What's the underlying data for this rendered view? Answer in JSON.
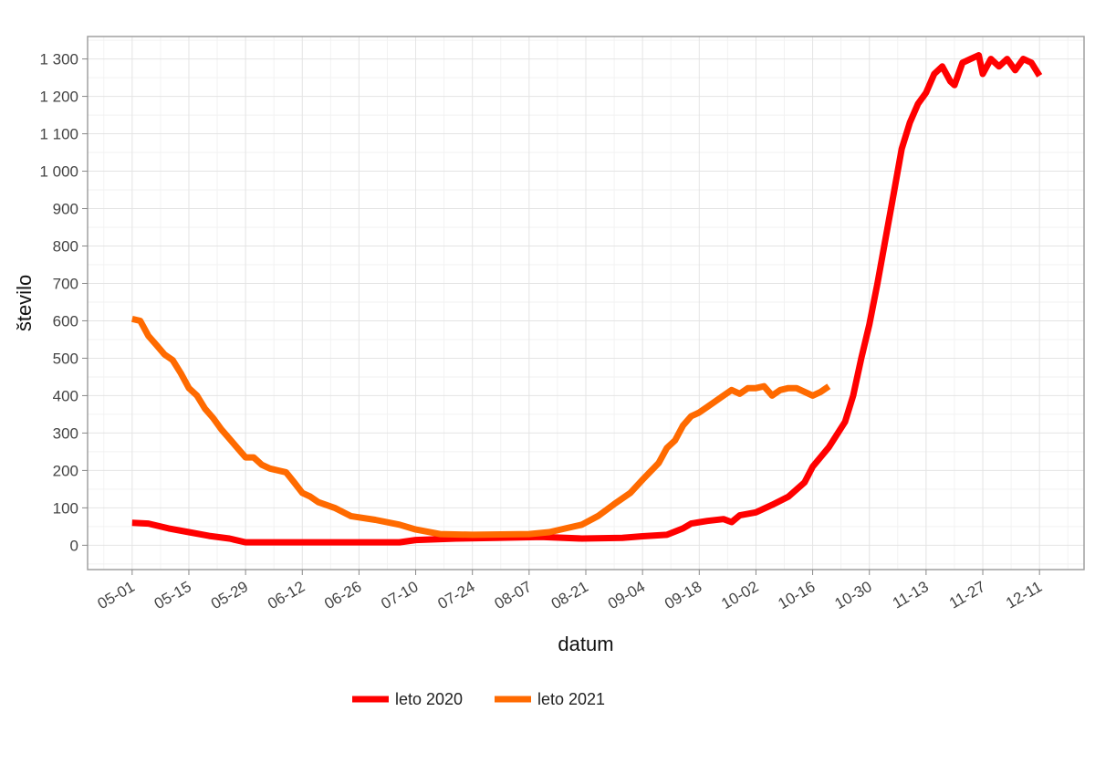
{
  "chart_data": {
    "type": "line",
    "xlabel": "datum",
    "ylabel": "število",
    "x_tick_labels": [
      "05-01",
      "05-15",
      "05-29",
      "06-12",
      "06-26",
      "07-10",
      "07-24",
      "08-07",
      "08-21",
      "09-04",
      "09-18",
      "10-02",
      "10-16",
      "10-30",
      "11-13",
      "11-27",
      "12-11"
    ],
    "y_tick_labels": [
      "0",
      "100",
      "200",
      "300",
      "400",
      "500",
      "600",
      "700",
      "800",
      "900",
      "1 000",
      "1 100",
      "1 200",
      "1 300"
    ],
    "y_ticks": [
      0,
      100,
      200,
      300,
      400,
      500,
      600,
      700,
      800,
      900,
      1000,
      1100,
      1200,
      1300
    ],
    "ylim": [
      -65,
      1360
    ],
    "x_axis": {
      "start": "05-01",
      "end": "12-11",
      "tick_step_days": 14,
      "overhang_days_left": 11,
      "overhang_days_right": 11
    },
    "grid": true,
    "legend_position": "bottom",
    "series": [
      {
        "name": "leto 2020",
        "color": "#ff0000",
        "points": [
          [
            "05-01",
            60
          ],
          [
            "05-05",
            58
          ],
          [
            "05-10",
            45
          ],
          [
            "05-15",
            35
          ],
          [
            "05-20",
            25
          ],
          [
            "05-25",
            18
          ],
          [
            "05-29",
            8
          ],
          [
            "06-10",
            8
          ],
          [
            "07-01",
            8
          ],
          [
            "07-06",
            8
          ],
          [
            "07-10",
            14
          ],
          [
            "07-20",
            18
          ],
          [
            "07-30",
            20
          ],
          [
            "08-10",
            22
          ],
          [
            "08-20",
            18
          ],
          [
            "08-30",
            20
          ],
          [
            "09-04",
            24
          ],
          [
            "09-10",
            28
          ],
          [
            "09-14",
            45
          ],
          [
            "09-16",
            58
          ],
          [
            "09-20",
            65
          ],
          [
            "09-24",
            70
          ],
          [
            "09-26",
            62
          ],
          [
            "09-28",
            80
          ],
          [
            "10-02",
            88
          ],
          [
            "10-06",
            108
          ],
          [
            "10-10",
            130
          ],
          [
            "10-14",
            168
          ],
          [
            "10-16",
            210
          ],
          [
            "10-20",
            262
          ],
          [
            "10-24",
            330
          ],
          [
            "10-26",
            400
          ],
          [
            "10-28",
            500
          ],
          [
            "10-30",
            590
          ],
          [
            "11-01",
            700
          ],
          [
            "11-03",
            820
          ],
          [
            "11-05",
            940
          ],
          [
            "11-07",
            1060
          ],
          [
            "11-09",
            1130
          ],
          [
            "11-11",
            1180
          ],
          [
            "11-13",
            1210
          ],
          [
            "11-15",
            1260
          ],
          [
            "11-17",
            1280
          ],
          [
            "11-19",
            1240
          ],
          [
            "11-20",
            1230
          ],
          [
            "11-22",
            1290
          ],
          [
            "11-24",
            1300
          ],
          [
            "11-26",
            1310
          ],
          [
            "11-27",
            1260
          ],
          [
            "11-29",
            1300
          ],
          [
            "12-01",
            1280
          ],
          [
            "12-03",
            1300
          ],
          [
            "12-05",
            1270
          ],
          [
            "12-07",
            1300
          ],
          [
            "12-09",
            1290
          ],
          [
            "12-11",
            1255
          ]
        ]
      },
      {
        "name": "leto 2021",
        "color": "#ff6a00",
        "points": [
          [
            "05-01",
            605
          ],
          [
            "05-03",
            600
          ],
          [
            "05-05",
            560
          ],
          [
            "05-07",
            535
          ],
          [
            "05-09",
            510
          ],
          [
            "05-11",
            495
          ],
          [
            "05-13",
            460
          ],
          [
            "05-15",
            420
          ],
          [
            "05-17",
            400
          ],
          [
            "05-19",
            365
          ],
          [
            "05-21",
            340
          ],
          [
            "05-23",
            310
          ],
          [
            "05-25",
            285
          ],
          [
            "05-27",
            260
          ],
          [
            "05-29",
            235
          ],
          [
            "05-31",
            235
          ],
          [
            "06-02",
            215
          ],
          [
            "06-04",
            205
          ],
          [
            "06-06",
            200
          ],
          [
            "06-08",
            195
          ],
          [
            "06-10",
            168
          ],
          [
            "06-12",
            140
          ],
          [
            "06-14",
            130
          ],
          [
            "06-16",
            115
          ],
          [
            "06-20",
            100
          ],
          [
            "06-24",
            78
          ],
          [
            "06-30",
            68
          ],
          [
            "07-06",
            55
          ],
          [
            "07-10",
            42
          ],
          [
            "07-16",
            30
          ],
          [
            "07-24",
            28
          ],
          [
            "08-07",
            30
          ],
          [
            "08-12",
            35
          ],
          [
            "08-16",
            45
          ],
          [
            "08-20",
            55
          ],
          [
            "08-24",
            78
          ],
          [
            "08-28",
            110
          ],
          [
            "09-01",
            140
          ],
          [
            "09-04",
            175
          ],
          [
            "09-08",
            220
          ],
          [
            "09-10",
            260
          ],
          [
            "09-12",
            280
          ],
          [
            "09-14",
            320
          ],
          [
            "09-16",
            345
          ],
          [
            "09-18",
            355
          ],
          [
            "09-20",
            370
          ],
          [
            "09-22",
            385
          ],
          [
            "09-24",
            400
          ],
          [
            "09-26",
            415
          ],
          [
            "09-28",
            405
          ],
          [
            "09-30",
            420
          ],
          [
            "10-02",
            420
          ],
          [
            "10-04",
            425
          ],
          [
            "10-06",
            400
          ],
          [
            "10-08",
            415
          ],
          [
            "10-10",
            420
          ],
          [
            "10-12",
            420
          ],
          [
            "10-14",
            410
          ],
          [
            "10-16",
            400
          ],
          [
            "10-18",
            410
          ],
          [
            "10-20",
            425
          ]
        ]
      }
    ]
  }
}
